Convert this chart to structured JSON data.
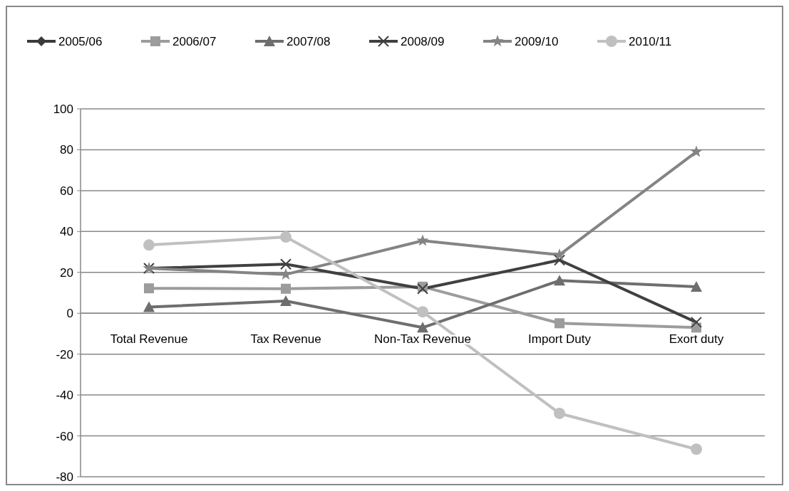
{
  "chart_data": {
    "type": "line",
    "categories": [
      "Total Revenue",
      "Tax Revenue",
      "Non-Tax Revenue",
      "Import Duty",
      "Exort duty"
    ],
    "series": [
      {
        "name": "2005/06",
        "color": "#3a3a3a",
        "marker": "diamond",
        "values": [
          null,
          null,
          null,
          null,
          null
        ]
      },
      {
        "name": "2006/07",
        "color": "#9c9c9c",
        "marker": "square",
        "values": [
          12.2,
          12,
          13,
          -4.9,
          -7
        ]
      },
      {
        "name": "2007/08",
        "color": "#6e6e6e",
        "marker": "triangle",
        "values": [
          3,
          6,
          -7,
          16,
          13
        ]
      },
      {
        "name": "2008/09",
        "color": "#404040",
        "marker": "cross",
        "values": [
          22,
          24,
          12,
          26,
          -4.4
        ]
      },
      {
        "name": "2009/10",
        "color": "#848484",
        "marker": "star",
        "values": [
          22,
          19,
          35.5,
          28.6,
          79
        ]
      },
      {
        "name": "2010/11",
        "color": "#c0c0c0",
        "marker": "circle",
        "values": [
          33.4,
          37.3,
          0.7,
          -49,
          -66.5
        ]
      }
    ],
    "ylim": [
      -80,
      100
    ],
    "yticks": [
      -80,
      -60,
      -40,
      -20,
      0,
      20,
      40,
      60,
      80,
      100
    ],
    "grid": "y",
    "legend": "top"
  }
}
